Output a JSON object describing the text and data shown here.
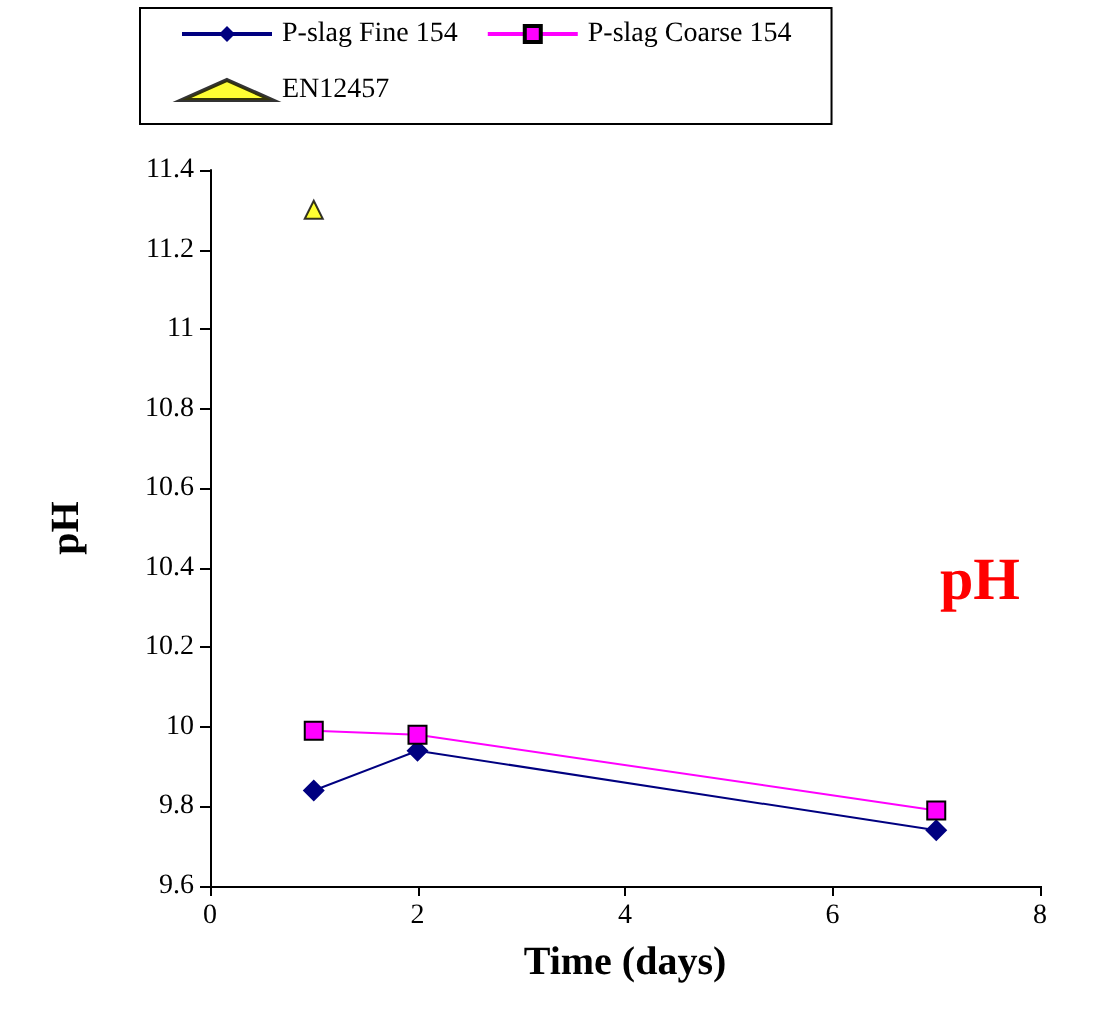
{
  "chart_data": {
    "type": "line",
    "xlabel": "Time (days)",
    "ylabel": "pH",
    "annotations": [
      "pH"
    ],
    "xlim": [
      0,
      8
    ],
    "xticks": [
      0,
      2,
      4,
      6,
      8
    ],
    "ylim": [
      9.6,
      11.4
    ],
    "yticks": [
      9.6,
      9.8,
      10,
      10.2,
      10.4,
      10.6,
      10.8,
      11,
      11.2,
      11.4
    ],
    "x": [
      1,
      2,
      7
    ],
    "series": [
      {
        "name": "P-slag Fine 154",
        "color": "#000080",
        "marker": "diamond",
        "values": [
          9.84,
          9.94,
          9.74
        ]
      },
      {
        "name": "P-slag Coarse 154",
        "color": "#ff00ff",
        "marker": "square",
        "values": [
          9.99,
          9.98,
          9.79
        ]
      },
      {
        "name": "EN12457",
        "type": "scatter",
        "color": "#ffff00",
        "marker": "triangle",
        "x": [
          1
        ],
        "values": [
          11.3
        ]
      }
    ],
    "grid": false,
    "legend": "top",
    "line_style": "solid"
  }
}
